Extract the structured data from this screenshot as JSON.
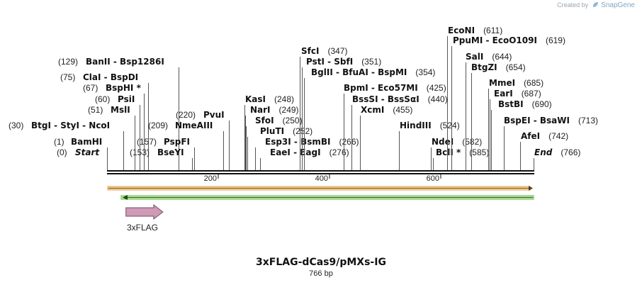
{
  "credit": {
    "prefix": "Created by",
    "brand": "SnapGene"
  },
  "map": {
    "title": "3xFLAG-dCas9/pMXs-IG",
    "length_label": "766 bp",
    "length_bp": 766,
    "axis": {
      "ticks": [
        200,
        400,
        600
      ],
      "start": 1,
      "end": 766
    }
  },
  "feature": {
    "name": "3xFLAG",
    "color": "#cf9ab5",
    "start": 35,
    "end": 100,
    "direction": "forward"
  },
  "tracks": [
    {
      "name": "orange-forward-track",
      "color": "#e8a24a",
      "direction": "forward"
    },
    {
      "name": "green-reverse-track",
      "color": "#5cbf3d",
      "direction": "reverse"
    }
  ],
  "sites": [
    {
      "id": "s0",
      "pos": "(0)",
      "label": "Start",
      "italic": true,
      "side": "left",
      "bp": 1
    },
    {
      "id": "s1",
      "pos": "(1)",
      "label": "BamHI",
      "side": "left",
      "bp": 1
    },
    {
      "id": "s30",
      "pos": "(30)",
      "label": "BtgI  -  StyI  -  NcoI",
      "side": "left",
      "bp": 30
    },
    {
      "id": "s51",
      "pos": "(51)",
      "label": "MslI",
      "side": "left",
      "bp": 51
    },
    {
      "id": "s60",
      "pos": "(60)",
      "label": "PsiI",
      "side": "left",
      "bp": 60
    },
    {
      "id": "s67",
      "pos": "(67)",
      "label": "BspHI *",
      "side": "left",
      "bp": 67
    },
    {
      "id": "s75",
      "pos": "(75)",
      "label": "ClaI  -  BspDI",
      "side": "left",
      "bp": 75
    },
    {
      "id": "s129",
      "pos": "(129)",
      "label": "BanII  -  Bsp1286I",
      "side": "left",
      "bp": 129
    },
    {
      "id": "s153",
      "pos": "(153)",
      "label": "BseYI",
      "side": "right",
      "bp": 153
    },
    {
      "id": "s157",
      "pos": "(157)",
      "label": "PspFI",
      "side": "right",
      "bp": 157
    },
    {
      "id": "s209",
      "pos": "(209)",
      "label": "NmeAIII",
      "side": "right",
      "bp": 209
    },
    {
      "id": "s220",
      "pos": "(220)",
      "label": "PvuI",
      "side": "right",
      "bp": 220
    },
    {
      "id": "s248",
      "pos": "(248)",
      "label": "KasI",
      "side": "left",
      "bp": 248
    },
    {
      "id": "s249",
      "pos": "(249)",
      "label": "NarI",
      "side": "left",
      "bp": 249
    },
    {
      "id": "s250",
      "pos": "(250)",
      "label": "SfoI",
      "side": "left",
      "bp": 250
    },
    {
      "id": "s252",
      "pos": "(252)",
      "label": "PluTI",
      "side": "left",
      "bp": 252
    },
    {
      "id": "s266",
      "pos": "(266)",
      "label": "Esp3I  -  BsmBI",
      "side": "left",
      "bp": 266
    },
    {
      "id": "s276",
      "pos": "(276)",
      "label": "EaeI  -  EagI",
      "side": "left",
      "bp": 276
    },
    {
      "id": "s347",
      "pos": "(347)",
      "label": "SfcI",
      "side": "left",
      "bp": 347
    },
    {
      "id": "s351",
      "pos": "(351)",
      "label": "PstI  -  SbfI",
      "side": "left",
      "bp": 351
    },
    {
      "id": "s354",
      "pos": "(354)",
      "label": "BglII  -  BfuAI  -  BspMI",
      "side": "left",
      "bp": 354
    },
    {
      "id": "s425",
      "pos": "(425)",
      "label": "BpmI  -  Eco57MI",
      "side": "left",
      "bp": 425
    },
    {
      "id": "s440",
      "pos": "(440)",
      "label": "BssSI  -  BssSαI",
      "side": "left",
      "bp": 440
    },
    {
      "id": "s455",
      "pos": "(455)",
      "label": "XcmI",
      "side": "left",
      "bp": 455
    },
    {
      "id": "s524",
      "pos": "(524)",
      "label": "HindIII",
      "side": "left",
      "bp": 524
    },
    {
      "id": "s582",
      "pos": "(582)",
      "label": "NdeI",
      "side": "left",
      "bp": 582
    },
    {
      "id": "s585",
      "pos": "(585)",
      "label": "BclI *",
      "side": "left",
      "bp": 585
    },
    {
      "id": "s611",
      "pos": "(611)",
      "label": "EcoNI",
      "side": "left",
      "bp": 611
    },
    {
      "id": "s619",
      "pos": "(619)",
      "label": "PpuMI  -  EcoO109I",
      "side": "left",
      "bp": 619
    },
    {
      "id": "s644",
      "pos": "(644)",
      "label": "SalI",
      "side": "left",
      "bp": 644
    },
    {
      "id": "s654",
      "pos": "(654)",
      "label": "BtgZI",
      "side": "left",
      "bp": 654
    },
    {
      "id": "s685",
      "pos": "(685)",
      "label": "MmeI",
      "side": "left",
      "bp": 685
    },
    {
      "id": "s687",
      "pos": "(687)",
      "label": "EarI",
      "side": "left",
      "bp": 687
    },
    {
      "id": "s690",
      "pos": "(690)",
      "label": "BstBI",
      "side": "left",
      "bp": 690
    },
    {
      "id": "s713",
      "pos": "(713)",
      "label": "BspEI  -  BsaWI",
      "side": "left",
      "bp": 713
    },
    {
      "id": "s742",
      "pos": "(742)",
      "label": "AfeI",
      "side": "left",
      "bp": 742
    },
    {
      "id": "s766",
      "pos": "(766)",
      "label": "End",
      "italic": true,
      "side": "left",
      "bp": 766
    }
  ]
}
